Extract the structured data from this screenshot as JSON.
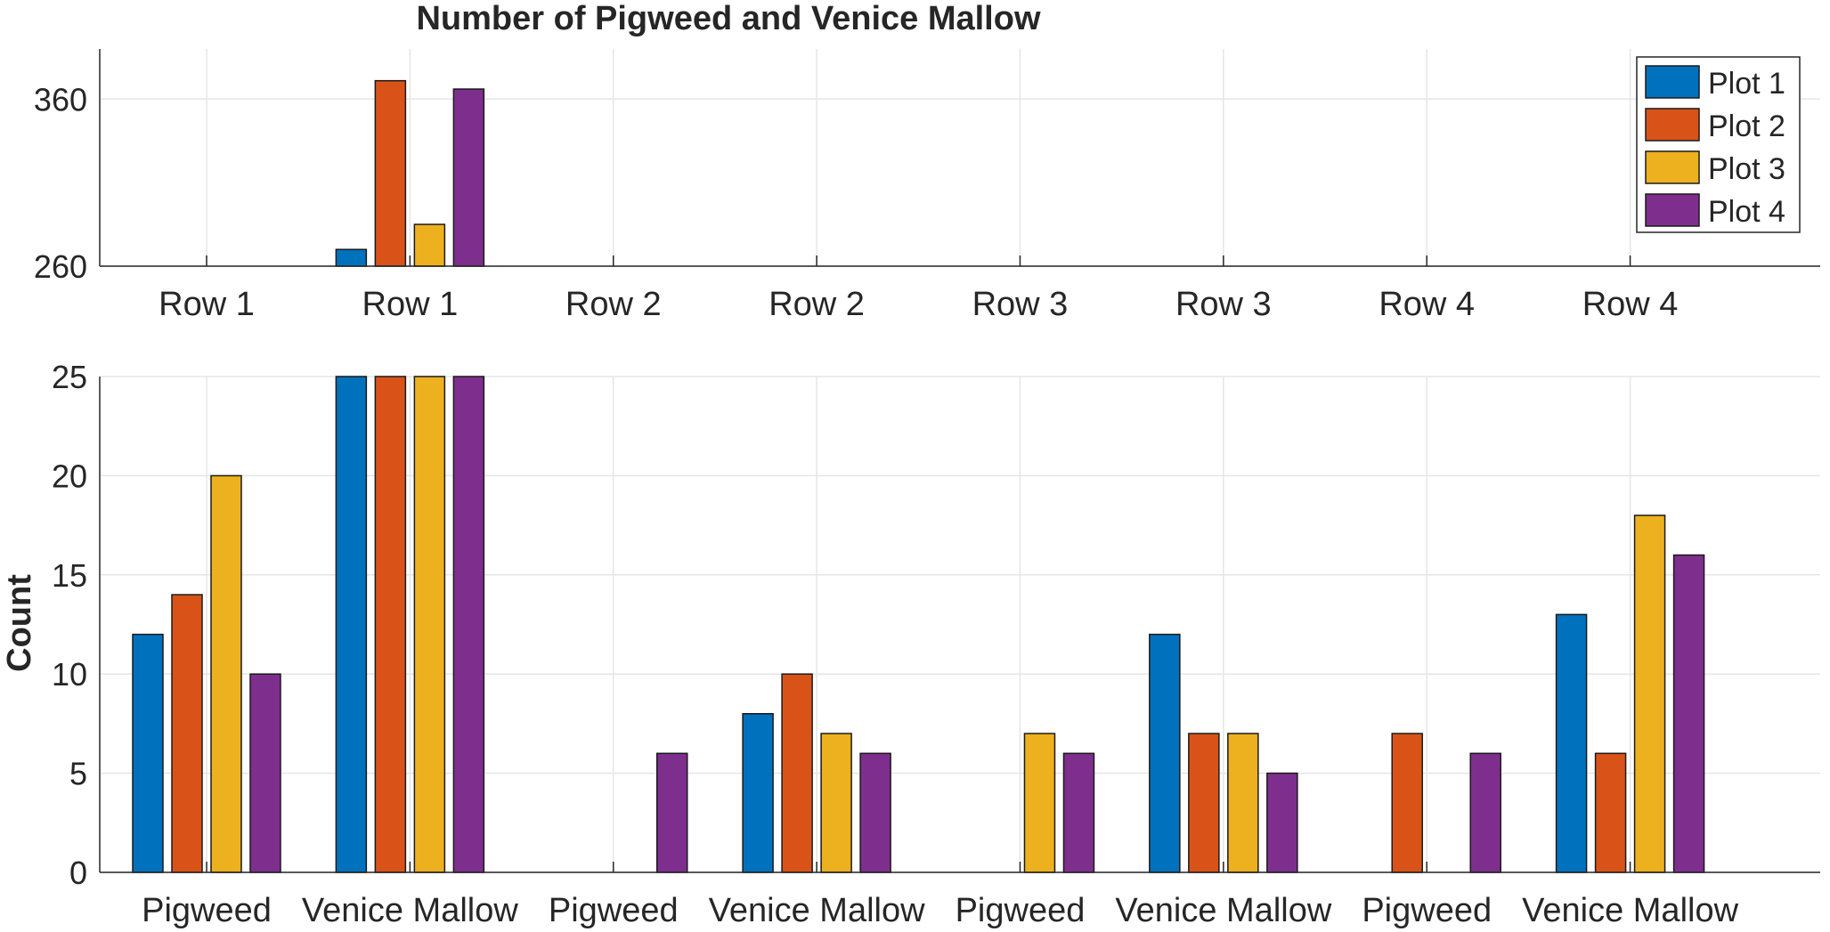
{
  "chart_data": {
    "type": "bar",
    "title": "Number of Pigweed and Venice Mallow",
    "ylabel": "Count",
    "series_names": [
      "Plot 1",
      "Plot 2",
      "Plot 3",
      "Plot 4"
    ],
    "colors": [
      "#0072BD",
      "#D95319",
      "#EDB120",
      "#7E2F8E"
    ],
    "legend": {
      "position": "top-right",
      "entries": [
        "Plot 1",
        "Plot 2",
        "Plot 3",
        "Plot 4"
      ]
    },
    "grid": true,
    "top_axis": {
      "ylim": [
        260,
        390
      ],
      "yticks": [
        "260",
        "360"
      ],
      "ytick_values": [
        260,
        360
      ],
      "categories": [
        "Row 1",
        "Row 1",
        "Row 2",
        "Row 2",
        "Row 3",
        "Row 3",
        "Row 4",
        "Row 4"
      ]
    },
    "bottom_axis": {
      "ylim": [
        0,
        25
      ],
      "yticks": [
        "0",
        "5",
        "10",
        "15",
        "20",
        "25"
      ],
      "ytick_values": [
        0,
        5,
        10,
        15,
        20,
        25
      ],
      "categories": [
        "Pigweed",
        "Venice Mallow",
        "Pigweed",
        "Venice Mallow",
        "Pigweed",
        "Venice Mallow",
        "Pigweed",
        "Venice Mallow"
      ]
    },
    "series": [
      {
        "name": "Plot 1",
        "values": [
          12,
          270,
          0,
          8,
          0,
          12,
          0,
          13
        ]
      },
      {
        "name": "Plot 2",
        "values": [
          14,
          371,
          0,
          10,
          0,
          7,
          7,
          6
        ]
      },
      {
        "name": "Plot 3",
        "values": [
          20,
          285,
          0,
          7,
          7,
          7,
          0,
          18
        ]
      },
      {
        "name": "Plot 4",
        "values": [
          10,
          366,
          6,
          6,
          6,
          5,
          6,
          16
        ]
      }
    ]
  }
}
